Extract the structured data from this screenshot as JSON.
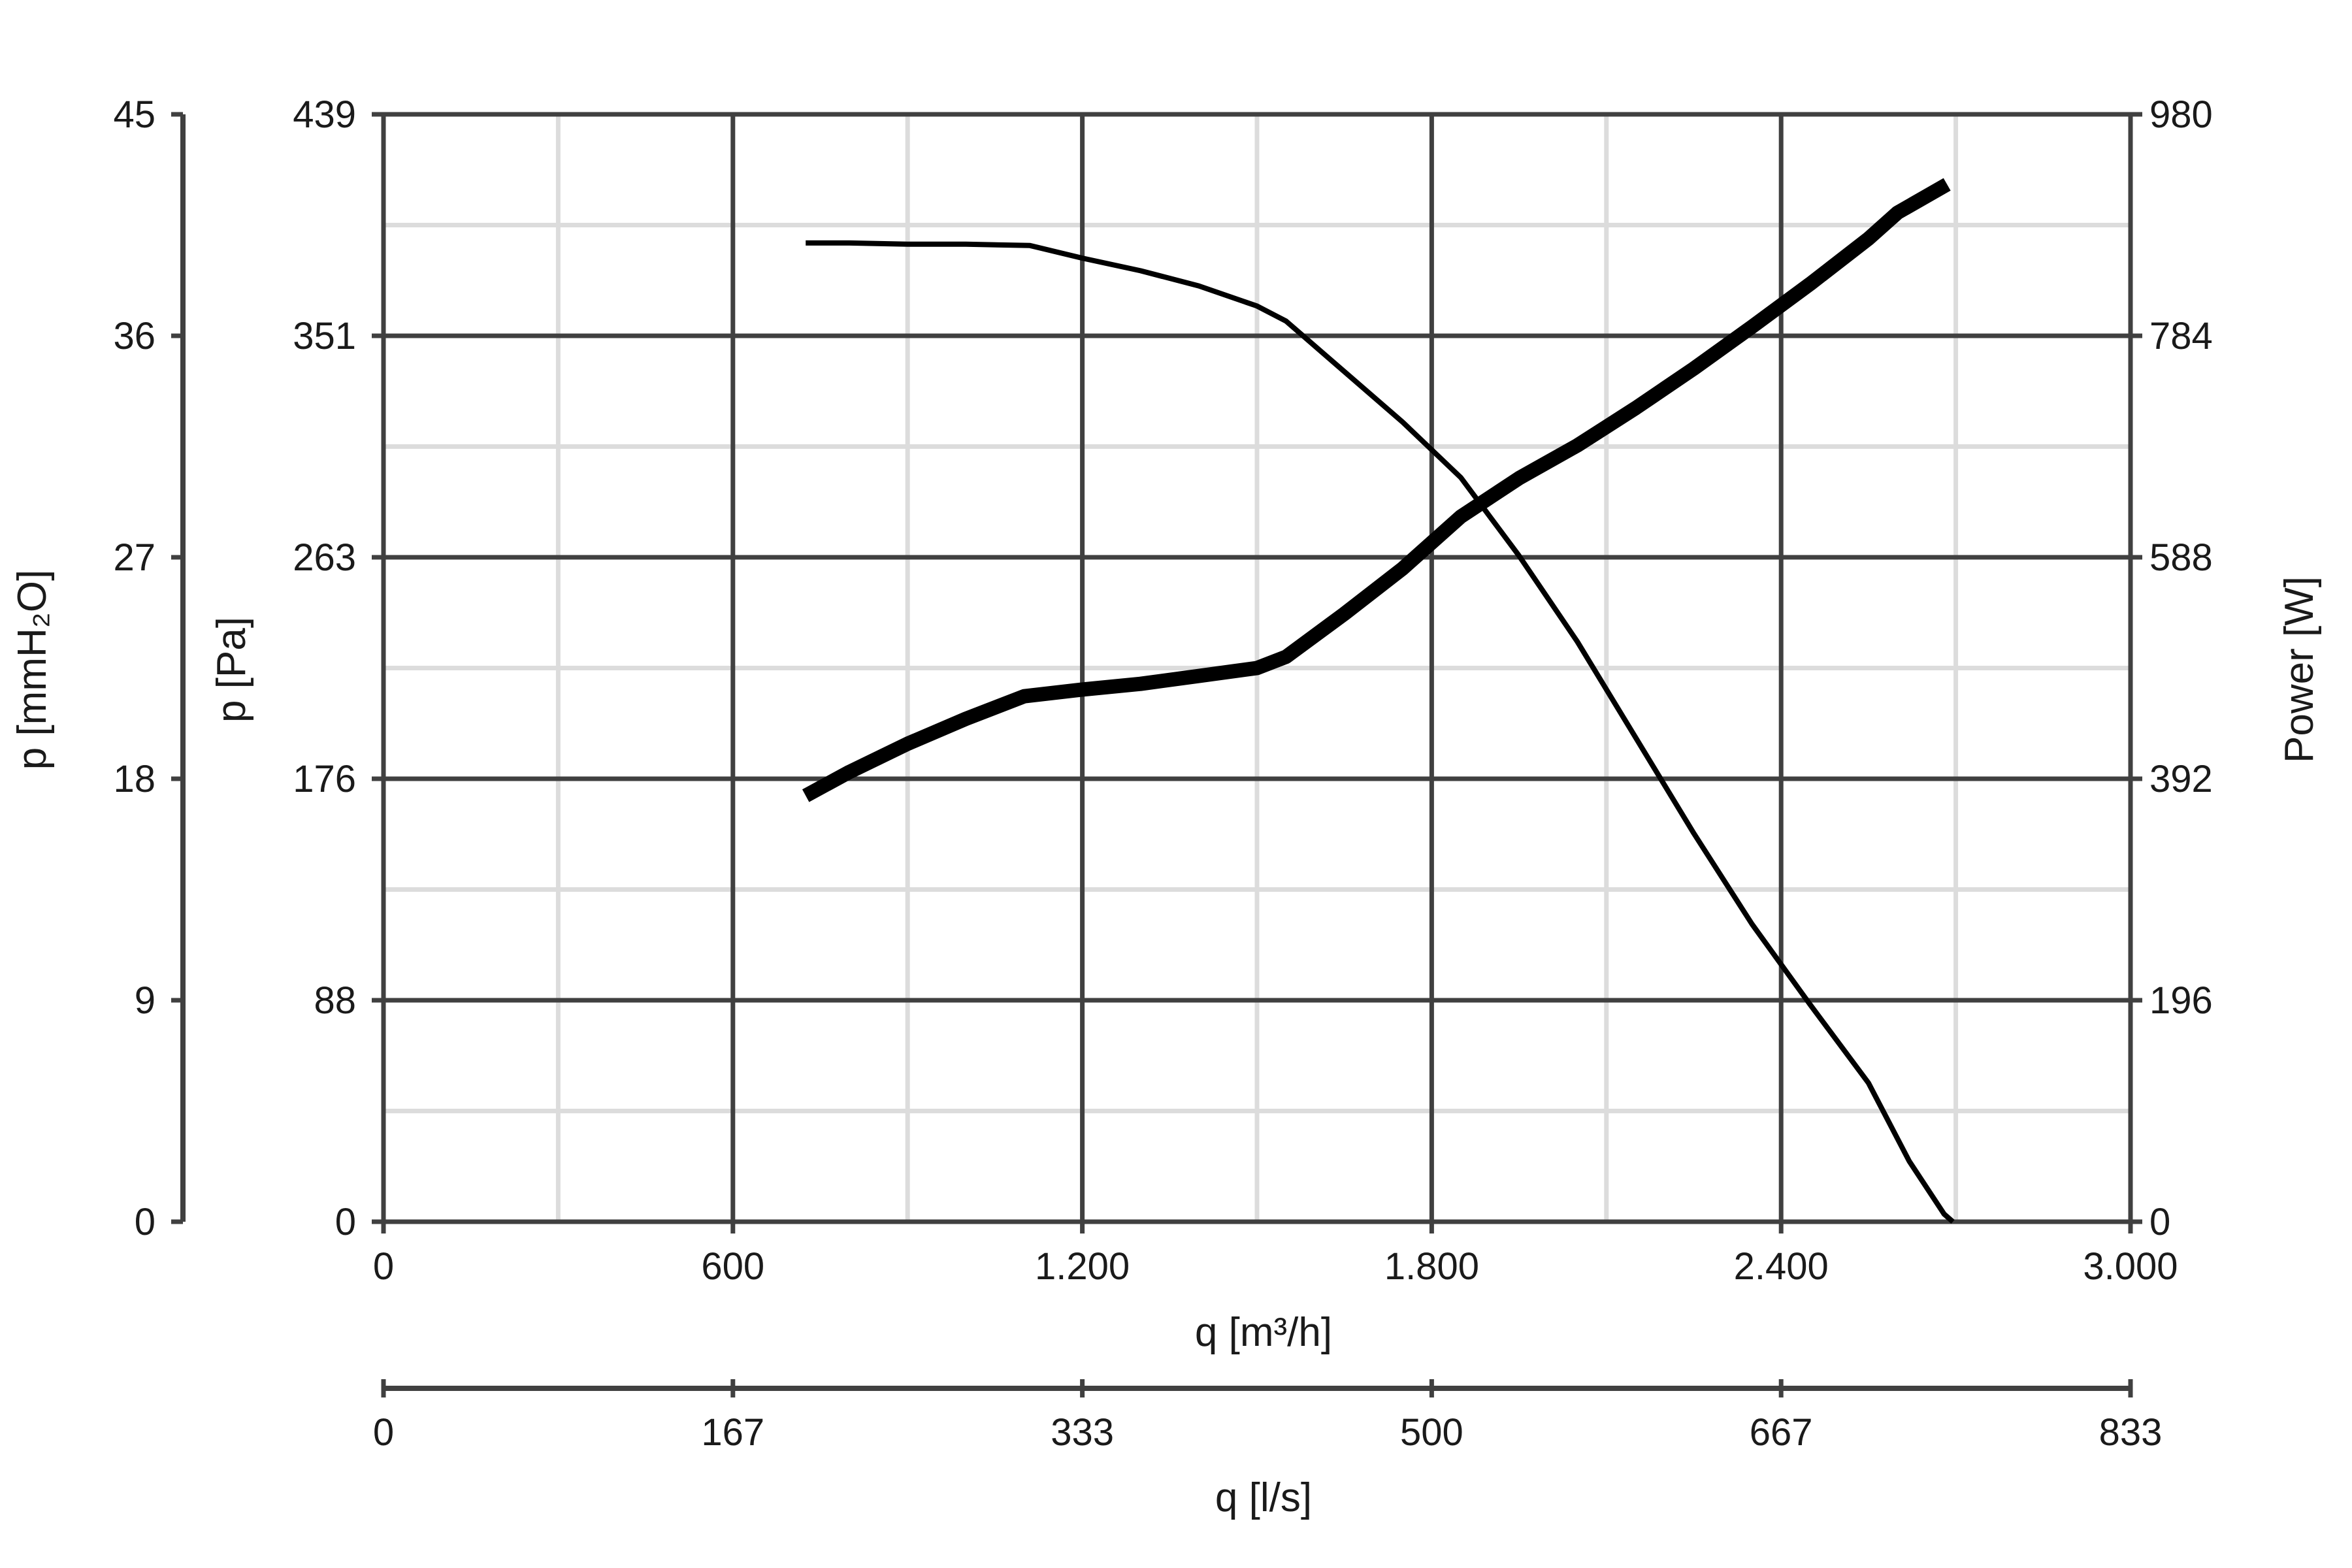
{
  "chart_data": {
    "type": "line",
    "x_axis": {
      "label": "q [m³/h]",
      "range": [
        0,
        3000
      ],
      "major_ticks": [
        0,
        600,
        1200,
        1800,
        2400,
        3000
      ],
      "tick_labels": [
        "0",
        "600",
        "1.200",
        "1.800",
        "2.400",
        "3.000"
      ],
      "minor_grid": [
        300,
        900,
        1500,
        2100,
        2700
      ]
    },
    "x2_axis": {
      "label": "q [l/s]",
      "range": [
        0,
        833
      ],
      "tick_labels": [
        "0",
        "167",
        "333",
        "500",
        "667",
        "833"
      ]
    },
    "y_axis": {
      "label": "p [Pa]",
      "range": [
        0,
        439
      ],
      "tick_labels": [
        "0",
        "88",
        "176",
        "263",
        "351",
        "439"
      ]
    },
    "y_outer_axis": {
      "label": "p [mmH₂O]",
      "range": [
        0,
        45
      ],
      "tick_labels": [
        "0",
        "9",
        "18",
        "27",
        "36",
        "45"
      ]
    },
    "y_right_axis": {
      "label": "Power [W]",
      "range": [
        0,
        980
      ],
      "tick_labels": [
        "0",
        "196",
        "392",
        "588",
        "784",
        "980"
      ]
    },
    "grid": true,
    "series": [
      {
        "axis": "pressure",
        "points": [
          [
            725,
            388
          ],
          [
            800,
            388
          ],
          [
            900,
            387.5
          ],
          [
            1000,
            387.5
          ],
          [
            1110,
            387
          ],
          [
            1200,
            382
          ],
          [
            1300,
            377
          ],
          [
            1400,
            371
          ],
          [
            1500,
            363
          ],
          [
            1550,
            357
          ],
          [
            1650,
            337
          ],
          [
            1750,
            317
          ],
          [
            1850,
            295
          ],
          [
            1950,
            264
          ],
          [
            2050,
            230
          ],
          [
            2150,
            192
          ],
          [
            2250,
            154
          ],
          [
            2350,
            118
          ],
          [
            2450,
            86
          ],
          [
            2550,
            55
          ],
          [
            2620,
            24
          ],
          [
            2680,
            3
          ],
          [
            2695,
            0
          ]
        ]
      },
      {
        "axis": "power",
        "points": [
          [
            725,
            377
          ],
          [
            800,
            398
          ],
          [
            900,
            423
          ],
          [
            1000,
            445
          ],
          [
            1100,
            465
          ],
          [
            1200,
            471
          ],
          [
            1300,
            476
          ],
          [
            1400,
            483
          ],
          [
            1500,
            490
          ],
          [
            1550,
            500
          ],
          [
            1650,
            538
          ],
          [
            1750,
            578
          ],
          [
            1850,
            624
          ],
          [
            1950,
            658
          ],
          [
            2050,
            687
          ],
          [
            2150,
            720
          ],
          [
            2250,
            755
          ],
          [
            2350,
            792
          ],
          [
            2450,
            830
          ],
          [
            2550,
            870
          ],
          [
            2600,
            893
          ],
          [
            2685,
            918
          ]
        ]
      }
    ]
  }
}
